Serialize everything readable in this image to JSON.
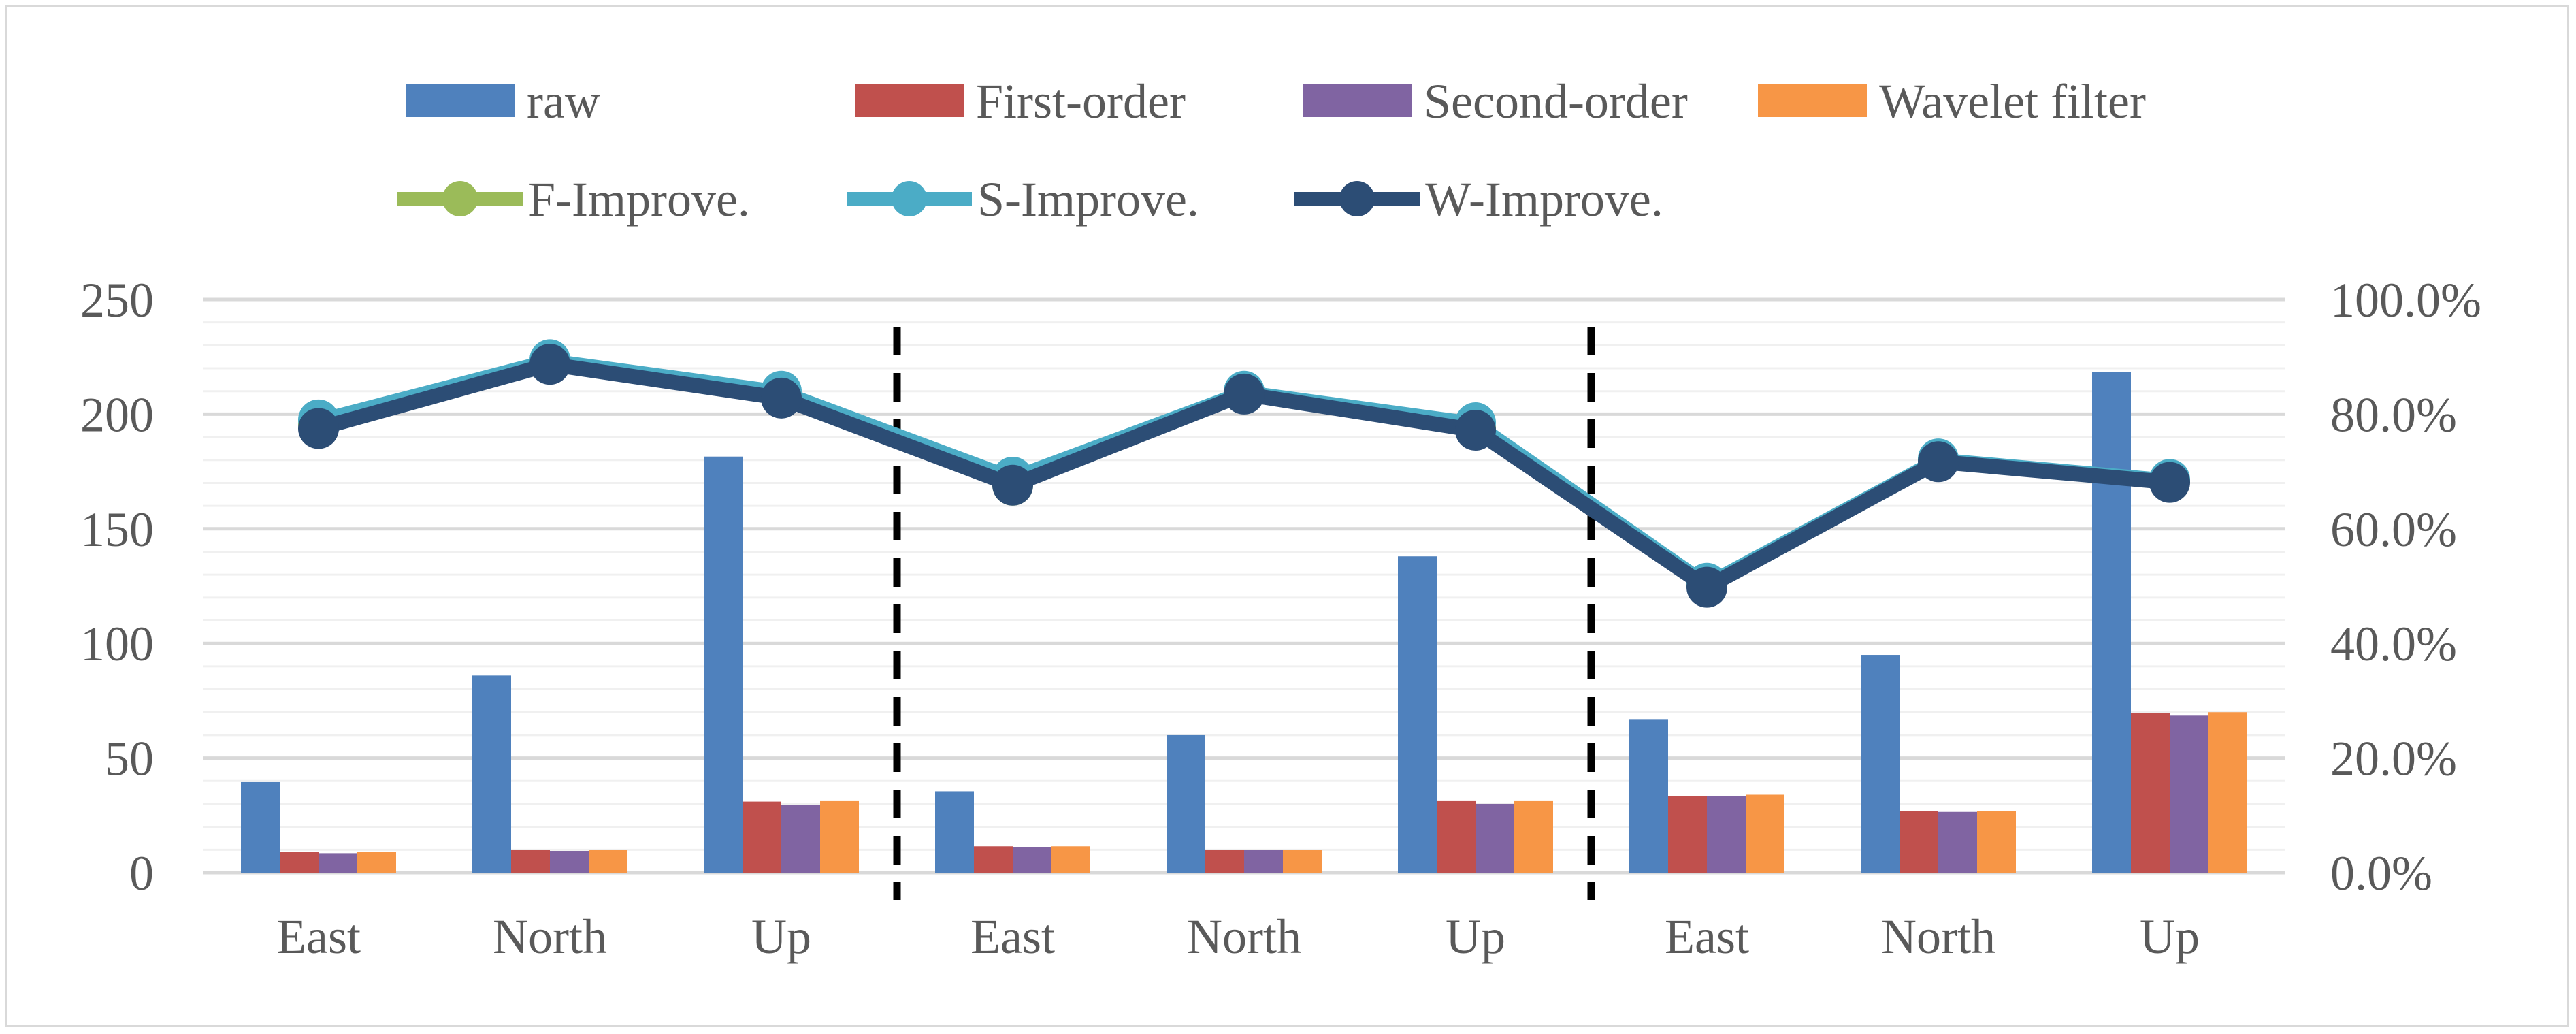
{
  "chart_data": {
    "type": "bar",
    "title": "",
    "xlabel": "",
    "ylabel": "",
    "y2label": "",
    "grid": true,
    "legend_position": "top",
    "ylim": [
      0,
      250
    ],
    "yticks": [
      "0",
      "50",
      "100",
      "150",
      "200",
      "250"
    ],
    "y2lim": [
      0,
      1
    ],
    "y2ticks": [
      "0.0%",
      "20.0%",
      "40.0%",
      "60.0%",
      "80.0%",
      "100.0%"
    ],
    "categories": [
      "East",
      "North",
      "Up",
      "East",
      "North",
      "Up",
      "East",
      "North",
      "Up"
    ],
    "group_separators_after": [
      2,
      5
    ],
    "series": [
      {
        "name": "raw",
        "type": "bar",
        "axis": "left",
        "color": "#4f81bd",
        "values": [
          39.5,
          86,
          181.5,
          35.5,
          60,
          138,
          67,
          95,
          218.5
        ]
      },
      {
        "name": "First-order",
        "type": "bar",
        "axis": "left",
        "color": "#c0504d",
        "values": [
          9,
          10,
          31,
          11.5,
          10,
          31.5,
          33.5,
          27,
          69.5
        ]
      },
      {
        "name": "Second-order",
        "type": "bar",
        "axis": "left",
        "color": "#8064a2",
        "values": [
          8.5,
          9.5,
          29.5,
          11,
          10,
          30,
          33.5,
          26.5,
          68.5
        ]
      },
      {
        "name": "Wavelet filter",
        "type": "bar",
        "axis": "left",
        "color": "#f79646",
        "values": [
          9,
          10,
          31.5,
          11.5,
          10,
          31.5,
          34,
          27,
          70
        ]
      },
      {
        "name": "F-Improve.",
        "type": "line",
        "axis": "right",
        "color": "#9bbb59",
        "values": [
          0.783,
          0.89,
          0.832,
          0.676,
          0.838,
          0.775,
          0.502,
          0.72,
          0.684
        ]
      },
      {
        "name": "S-Improve.",
        "type": "line",
        "axis": "right",
        "color": "#4bacc6",
        "values": [
          0.79,
          0.895,
          0.84,
          0.69,
          0.84,
          0.785,
          0.505,
          0.722,
          0.686
        ]
      },
      {
        "name": "W-Improve.",
        "type": "line",
        "axis": "right",
        "color": "#2c4d75",
        "values": [
          0.775,
          0.887,
          0.828,
          0.676,
          0.835,
          0.772,
          0.498,
          0.717,
          0.681
        ]
      }
    ]
  }
}
